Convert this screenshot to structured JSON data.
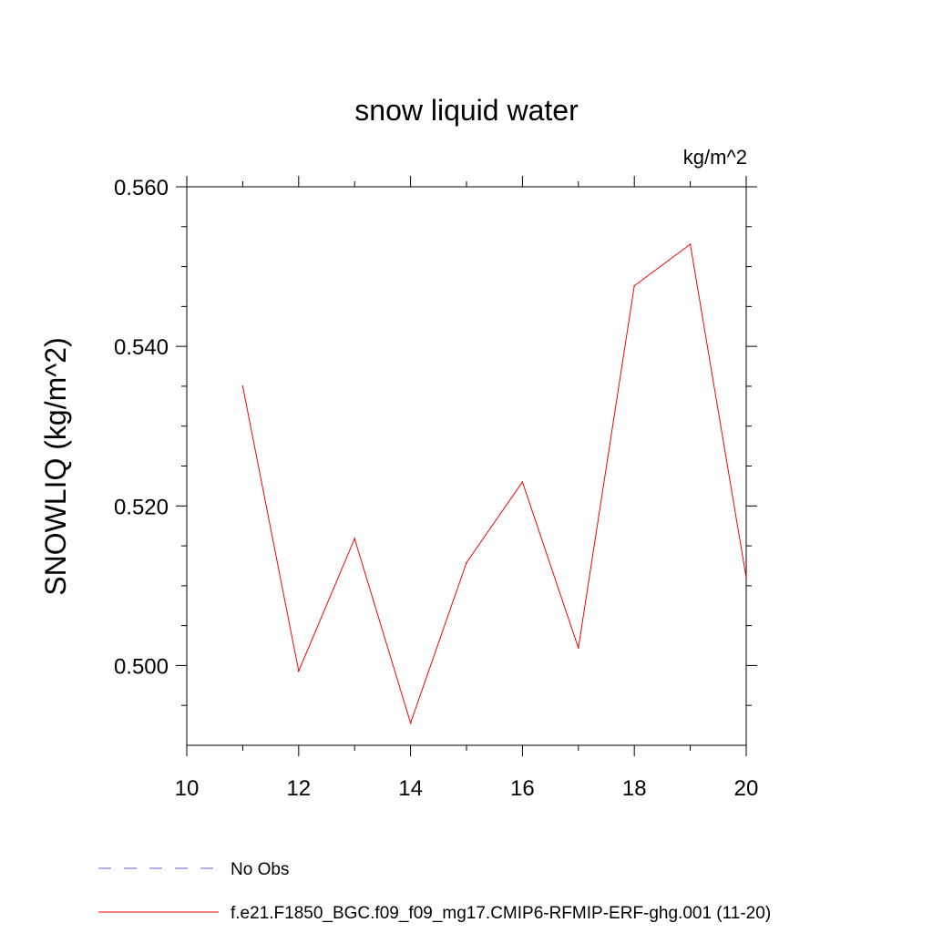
{
  "chart_data": {
    "type": "line",
    "title": "snow liquid water",
    "units_label": "kg/m^2",
    "xlabel": "",
    "ylabel": "SNOWLIQ  (kg/m^2)",
    "xlim": [
      10,
      20
    ],
    "ylim": [
      0.49,
      0.56
    ],
    "x_ticks": [
      10,
      12,
      14,
      16,
      18,
      20
    ],
    "x_tick_labels": [
      "10",
      "12",
      "14",
      "16",
      "18",
      "20"
    ],
    "y_ticks": [
      0.5,
      0.52,
      0.54,
      0.56
    ],
    "y_tick_labels": [
      "0.500",
      "0.520",
      "0.540",
      "0.560"
    ],
    "x_minor_ticks": [
      11,
      13,
      15,
      17,
      19
    ],
    "y_minor_ticks": [
      0.495,
      0.505,
      0.51,
      0.515,
      0.525,
      0.53,
      0.535,
      0.545,
      0.55,
      0.555
    ],
    "grid": false,
    "legend_position": "bottom",
    "series": [
      {
        "name": "No Obs",
        "color": "#6a5acd",
        "dash": "dashed",
        "x": [],
        "values": []
      },
      {
        "name": "f.e21.F1850_BGC.f09_f09_mg17.CMIP6-RFMIP-ERF-ghg.001 (11-20)",
        "color": "#ff0000",
        "dash": "solid",
        "x": [
          11,
          12,
          13,
          14,
          15,
          16,
          17,
          18,
          19,
          20
        ],
        "values": [
          0.535,
          0.4993,
          0.5159,
          0.4928,
          0.5129,
          0.523,
          0.5022,
          0.5476,
          0.5528,
          0.511
        ]
      }
    ]
  }
}
